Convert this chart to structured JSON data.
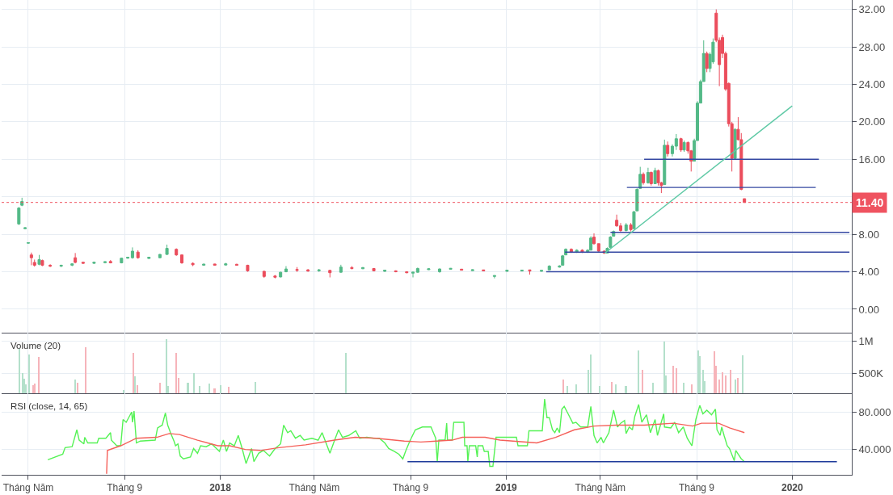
{
  "chart_data": [
    {
      "type": "candlestick",
      "x": [
        "2017-04-19",
        "2017-04-23",
        "2017-04-27",
        "2017-05-01",
        "2017-05-05",
        "2017-05-09",
        "2017-05-15",
        "2017-05-19",
        "2017-05-29",
        "2017-06-12",
        "2017-06-26",
        "2017-06-30",
        "2017-07-10",
        "2017-07-24",
        "2017-08-07",
        "2017-08-14",
        "2017-08-28",
        "2017-09-05",
        "2017-09-11",
        "2017-09-18",
        "2017-10-02",
        "2017-10-16",
        "2017-10-25",
        "2017-11-06",
        "2017-11-13",
        "2017-11-27",
        "2017-12-11",
        "2017-12-25",
        "2018-01-08",
        "2018-01-22",
        "2018-02-05",
        "2018-02-26",
        "2018-03-12",
        "2018-03-19",
        "2018-03-26",
        "2018-04-09",
        "2018-04-23",
        "2018-05-07",
        "2018-05-21",
        "2018-06-04",
        "2018-06-18",
        "2018-07-02",
        "2018-07-16",
        "2018-07-30",
        "2018-08-13",
        "2018-08-27",
        "2018-09-04",
        "2018-09-10",
        "2018-09-24",
        "2018-10-08",
        "2018-10-22",
        "2018-11-05",
        "2018-11-19",
        "2018-12-03",
        "2018-12-17",
        "2019-01-02",
        "2019-01-21",
        "2019-01-31",
        "2019-02-15",
        "2019-02-25",
        "2019-03-10",
        "2019-03-14",
        "2019-03-18",
        "2019-03-25",
        "2019-04-01",
        "2019-04-08",
        "2019-04-15",
        "2019-04-19",
        "2019-04-23",
        "2019-04-29",
        "2019-05-06",
        "2019-05-10",
        "2019-05-14",
        "2019-05-18",
        "2019-05-22",
        "2019-05-27",
        "2019-06-03",
        "2019-06-09",
        "2019-06-13",
        "2019-06-17",
        "2019-06-21",
        "2019-06-25",
        "2019-07-01",
        "2019-07-05",
        "2019-07-10",
        "2019-07-14",
        "2019-07-18",
        "2019-07-22",
        "2019-07-26",
        "2019-08-01",
        "2019-08-06",
        "2019-08-12",
        "2019-08-16",
        "2019-08-21",
        "2019-08-25",
        "2019-08-29",
        "2019-09-02",
        "2019-09-06",
        "2019-09-10",
        "2019-09-14",
        "2019-09-18",
        "2019-09-22",
        "2019-09-26",
        "2019-09-30",
        "2019-10-04",
        "2019-10-08",
        "2019-10-12",
        "2019-10-16",
        "2019-10-20",
        "2019-10-24",
        "2019-10-28",
        "2019-11-01"
      ],
      "ohlc": [
        [
          9.1,
          10.9,
          9.0,
          10.8
        ],
        [
          11.1,
          11.9,
          11.0,
          11.5
        ],
        [
          8.6,
          8.75,
          8.55,
          8.7
        ],
        [
          7.05,
          7.15,
          7.0,
          7.1
        ],
        [
          5.8,
          6.05,
          4.7,
          5.5
        ],
        [
          5.0,
          5.3,
          4.55,
          4.7
        ],
        [
          4.8,
          5.8,
          4.7,
          5.3
        ],
        [
          5.2,
          5.3,
          4.6,
          4.7
        ],
        [
          4.7,
          4.8,
          4.5,
          4.6
        ],
        [
          4.6,
          4.75,
          4.5,
          4.7
        ],
        [
          4.7,
          4.9,
          4.6,
          4.85
        ],
        [
          5.5,
          6.0,
          4.9,
          5.0
        ],
        [
          5.02,
          5.05,
          4.85,
          4.9
        ],
        [
          4.9,
          5.05,
          4.85,
          5.02
        ],
        [
          4.97,
          5.1,
          4.9,
          5.08
        ],
        [
          5.1,
          5.25,
          4.9,
          4.95
        ],
        [
          4.95,
          5.5,
          4.9,
          5.45
        ],
        [
          5.45,
          5.6,
          5.4,
          5.55
        ],
        [
          5.5,
          6.6,
          5.4,
          6.2
        ],
        [
          6.1,
          6.3,
          5.4,
          5.5
        ],
        [
          5.42,
          5.6,
          5.4,
          5.55
        ],
        [
          5.5,
          5.9,
          5.45,
          5.85
        ],
        [
          5.85,
          6.9,
          5.8,
          6.5
        ],
        [
          6.4,
          6.5,
          5.7,
          5.8
        ],
        [
          5.8,
          5.85,
          4.85,
          4.95
        ],
        [
          4.9,
          5.0,
          4.6,
          4.75
        ],
        [
          4.7,
          4.85,
          4.65,
          4.82
        ],
        [
          4.83,
          4.85,
          4.65,
          4.7
        ],
        [
          4.72,
          4.95,
          4.7,
          4.85
        ],
        [
          4.8,
          4.85,
          4.65,
          4.7
        ],
        [
          4.7,
          4.75,
          4.0,
          4.1
        ],
        [
          4.05,
          4.1,
          3.35,
          3.5
        ],
        [
          3.55,
          3.65,
          3.3,
          3.42
        ],
        [
          3.45,
          4.0,
          3.4,
          3.95
        ],
        [
          4.0,
          4.6,
          3.95,
          4.3
        ],
        [
          4.25,
          4.5,
          4.0,
          4.15
        ],
        [
          4.2,
          4.3,
          4.0,
          4.08
        ],
        [
          4.1,
          4.3,
          4.0,
          4.2
        ],
        [
          4.15,
          4.2,
          3.4,
          3.9
        ],
        [
          3.95,
          4.75,
          3.9,
          4.5
        ],
        [
          4.45,
          4.6,
          4.25,
          4.35
        ],
        [
          4.32,
          4.5,
          4.3,
          4.45
        ],
        [
          4.35,
          4.4,
          4.05,
          4.1
        ],
        [
          4.05,
          4.2,
          4.0,
          4.17
        ],
        [
          4.1,
          4.15,
          3.95,
          4.0
        ],
        [
          4.0,
          4.05,
          3.85,
          3.9
        ],
        [
          3.85,
          4.0,
          3.4,
          3.97
        ],
        [
          3.95,
          4.45,
          3.9,
          4.35
        ],
        [
          4.22,
          4.35,
          4.2,
          4.32
        ],
        [
          4.0,
          4.35,
          3.9,
          4.3
        ],
        [
          4.27,
          4.4,
          4.25,
          4.37
        ],
        [
          4.28,
          4.3,
          4.15,
          4.17
        ],
        [
          4.12,
          4.25,
          4.1,
          4.22
        ],
        [
          4.2,
          4.2,
          4.05,
          4.1
        ],
        [
          3.5,
          3.6,
          3.3,
          3.6
        ],
        [
          4.05,
          4.18,
          4.02,
          4.17
        ],
        [
          4.08,
          4.2,
          4.05,
          4.18
        ],
        [
          4.2,
          4.22,
          3.7,
          4.08
        ],
        [
          4.05,
          4.15,
          4.03,
          4.15
        ],
        [
          4.2,
          4.7,
          4.2,
          4.6
        ],
        [
          4.5,
          4.7,
          4.45,
          4.62
        ],
        [
          4.7,
          5.8,
          4.7,
          5.7
        ],
        [
          5.8,
          6.5,
          5.8,
          6.4
        ],
        [
          6.4,
          6.5,
          6.0,
          6.1
        ],
        [
          6.1,
          6.4,
          6.0,
          6.3
        ],
        [
          6.3,
          6.4,
          6.0,
          6.1
        ],
        [
          6.1,
          6.4,
          6.0,
          6.3
        ],
        [
          6.3,
          7.8,
          6.3,
          7.6
        ],
        [
          7.7,
          8.1,
          6.9,
          7.0
        ],
        [
          7.0,
          7.0,
          6.1,
          6.2
        ],
        [
          6.2,
          6.3,
          5.9,
          6.0
        ],
        [
          6.0,
          6.6,
          6.0,
          6.5
        ],
        [
          6.6,
          7.8,
          6.6,
          7.7
        ],
        [
          7.8,
          8.4,
          7.8,
          8.3
        ],
        [
          9.5,
          10.1,
          8.8,
          8.9
        ],
        [
          8.9,
          9.2,
          8.2,
          8.4
        ],
        [
          8.4,
          9.2,
          8.3,
          9.0
        ],
        [
          9.0,
          9.2,
          8.3,
          8.5
        ],
        [
          8.6,
          10.5,
          8.6,
          10.4
        ],
        [
          10.5,
          12.9,
          10.5,
          12.8
        ],
        [
          12.9,
          15.2,
          12.9,
          14.4
        ],
        [
          14.4,
          14.6,
          13.3,
          13.5
        ],
        [
          13.5,
          15.1,
          13.4,
          14.6
        ],
        [
          14.6,
          14.7,
          13.2,
          13.4
        ],
        [
          13.4,
          15.1,
          13.4,
          14.8
        ],
        [
          14.8,
          14.9,
          13.2,
          13.5
        ],
        [
          13.5,
          13.6,
          12.4,
          13.2
        ],
        [
          13.3,
          18.1,
          13.3,
          17.5
        ],
        [
          17.5,
          17.9,
          16.3,
          16.6
        ],
        [
          16.6,
          17.6,
          16.3,
          17.4
        ],
        [
          17.4,
          18.7,
          17.0,
          18.2
        ],
        [
          18.2,
          18.3,
          16.8,
          17.0
        ],
        [
          17.0,
          18.0,
          16.8,
          17.8
        ],
        [
          17.8,
          17.9,
          16.6,
          16.9
        ],
        [
          16.9,
          17.0,
          14.7,
          15.8
        ],
        [
          15.8,
          18.2,
          15.8,
          18.0
        ],
        [
          18.0,
          22.2,
          18.0,
          22.0
        ],
        [
          22.0,
          24.5,
          22.0,
          24.3
        ],
        [
          24.3,
          28.7,
          24.3,
          27.3
        ],
        [
          27.3,
          27.5,
          25.3,
          25.7
        ],
        [
          25.7,
          27.4,
          25.3,
          27.2
        ],
        [
          26.4,
          28.9,
          26.2,
          28.5
        ],
        [
          31.6,
          32.0,
          28.5,
          28.7
        ],
        [
          28.7,
          29.0,
          23.8,
          26.1
        ],
        [
          29.0,
          29.3,
          26.8,
          27.3
        ],
        [
          27.3,
          27.5,
          23.3,
          23.5
        ],
        [
          24.1,
          24.2,
          19.5,
          19.8
        ],
        [
          19.8,
          20.0,
          14.7,
          16.1
        ],
        [
          16.1,
          19.3,
          16.0,
          19.2
        ],
        [
          19.2,
          20.5,
          18.0,
          18.1
        ],
        [
          18.1,
          18.8,
          12.7,
          12.8
        ],
        [
          11.8,
          11.8,
          11.4,
          11.4
        ]
      ],
      "colors": [
        "#53b987",
        "#53b987",
        "#53b987",
        "#53b987",
        "#eb4d5c",
        "#eb4d5c",
        "#53b987",
        "#eb4d5c",
        "#eb4d5c",
        "#53b987",
        "#53b987",
        "#eb4d5c",
        "#eb4d5c",
        "#53b987",
        "#53b987",
        "#eb4d5c",
        "#53b987",
        "#53b987",
        "#53b987",
        "#eb4d5c",
        "#53b987",
        "#53b987",
        "#53b987",
        "#eb4d5c",
        "#eb4d5c",
        "#eb4d5c",
        "#53b987",
        "#eb4d5c",
        "#53b987",
        "#eb4d5c",
        "#eb4d5c",
        "#eb4d5c",
        "#eb4d5c",
        "#53b987",
        "#53b987",
        "#eb4d5c",
        "#eb4d5c",
        "#53b987",
        "#eb4d5c",
        "#53b987",
        "#eb4d5c",
        "#53b987",
        "#eb4d5c",
        "#53b987",
        "#eb4d5c",
        "#eb4d5c",
        "#53b987",
        "#53b987",
        "#53b987",
        "#53b987",
        "#53b987",
        "#eb4d5c",
        "#53b987",
        "#eb4d5c",
        "#53b987",
        "#53b987",
        "#53b987",
        "#eb4d5c",
        "#53b987",
        "#53b987",
        "#53b987",
        "#53b987",
        "#53b987",
        "#eb4d5c",
        "#53b987",
        "#eb4d5c",
        "#53b987",
        "#53b987",
        "#eb4d5c",
        "#eb4d5c",
        "#eb4d5c",
        "#53b987",
        "#53b987",
        "#53b987",
        "#eb4d5c",
        "#eb4d5c",
        "#53b987",
        "#eb4d5c",
        "#53b987",
        "#53b987",
        "#53b987",
        "#eb4d5c",
        "#53b987",
        "#eb4d5c",
        "#53b987",
        "#eb4d5c",
        "#eb4d5c",
        "#53b987",
        "#eb4d5c",
        "#53b987",
        "#53b987",
        "#eb4d5c",
        "#53b987",
        "#eb4d5c",
        "#eb4d5c",
        "#53b987",
        "#53b987",
        "#53b987",
        "#53b987",
        "#eb4d5c",
        "#53b987",
        "#53b987",
        "#eb4d5c",
        "#eb4d5c",
        "#eb4d5c",
        "#eb4d5c",
        "#eb4d5c",
        "#eb4d5c",
        "#53b987",
        "#eb4d5c",
        "#eb4d5c",
        "#eb4d5c"
      ],
      "series": [
        {
          "type": "line",
          "x": [
            "2019-06-26",
            "2020-02-04"
          ],
          "values": [
            16,
            16
          ],
          "color": "#3548a2"
        },
        {
          "type": "line",
          "x": [
            "2019-06-04",
            "2020-01-31"
          ],
          "values": [
            13,
            13
          ],
          "color": "#3548a2"
        },
        {
          "type": "line",
          "x": [
            "2019-05-14",
            "2020-03-14"
          ],
          "values": [
            8.2,
            8.2
          ],
          "color": "#3548a2"
        },
        {
          "type": "line",
          "x": [
            "2019-03-17",
            "2020-03-14"
          ],
          "values": [
            6.1,
            6.1
          ],
          "color": "#3548a2"
        },
        {
          "type": "line",
          "x": [
            "2019-02-21",
            "2020-03-14"
          ],
          "values": [
            4,
            4
          ],
          "color": "#3548a2"
        },
        {
          "type": "line",
          "x": [
            "2019-05-07",
            "2020-01-01"
          ],
          "values": [
            6,
            21.7
          ],
          "color": "#5ec9a5"
        }
      ],
      "ref_lines": [
        {
          "axis": "y",
          "value": 11.4,
          "label": "11.40",
          "color": "#ef5360",
          "line_style": "dotted"
        }
      ],
      "xlim": [
        "2017-03-28",
        "2020-03-17"
      ],
      "xticks": [
        {
          "value": "2017-05-01",
          "label": null
        },
        {
          "value": "2017-09-01",
          "label": null
        },
        {
          "value": "2018-01-01",
          "label": null
        },
        {
          "value": "2018-05-01",
          "label": null
        },
        {
          "value": "2018-09-01",
          "label": null
        },
        {
          "value": "2019-01-01",
          "label": null
        },
        {
          "value": "2019-05-01",
          "label": null
        },
        {
          "value": "2019-09-01",
          "label": null
        },
        {
          "value": "2020-01-01",
          "label": null
        }
      ],
      "ylim": [
        -2.5,
        33
      ],
      "yticks": [
        {
          "value": 0,
          "label": "0.00"
        },
        {
          "value": 4,
          "label": "4.00"
        },
        {
          "value": 8,
          "label": "8.00"
        },
        {
          "value": 12,
          "label": null
        },
        {
          "value": 16,
          "label": "16.00"
        },
        {
          "value": 20,
          "label": "20.00"
        },
        {
          "value": 24,
          "label": "24.00"
        },
        {
          "value": 28,
          "label": "28.00"
        },
        {
          "value": 32,
          "label": "32.00"
        }
      ],
      "tick_labels": "y",
      "grid": true
    },
    {
      "type": "bar",
      "title": "Volume (20)",
      "x": [
        "2017-04-20",
        "2017-04-24",
        "2017-04-26",
        "2017-04-28",
        "2017-05-02",
        "2017-05-08",
        "2017-05-10",
        "2017-05-15",
        "2017-06-30",
        "2017-07-03",
        "2017-07-14",
        "2017-08-31",
        "2017-09-12",
        "2017-09-14",
        "2017-09-18",
        "2017-10-16",
        "2017-10-25",
        "2017-10-27",
        "2017-11-06",
        "2017-11-09",
        "2017-11-21",
        "2017-11-29",
        "2017-12-06",
        "2017-12-18",
        "2017-12-25",
        "2018-01-02",
        "2018-01-12",
        "2018-02-15",
        "2018-06-11",
        "2019-03-15",
        "2019-03-20",
        "2019-04-01",
        "2019-04-16",
        "2019-04-19",
        "2019-04-30",
        "2019-05-16",
        "2019-05-21",
        "2019-06-03",
        "2019-06-19",
        "2019-06-24",
        "2019-07-08",
        "2019-07-22",
        "2019-07-24",
        "2019-08-02",
        "2019-08-06",
        "2019-08-16",
        "2019-08-26",
        "2019-09-03",
        "2019-09-05",
        "2019-09-09",
        "2019-09-12",
        "2019-09-24",
        "2019-09-26",
        "2019-09-30",
        "2019-10-04",
        "2019-10-08",
        "2019-10-15",
        "2019-10-21",
        "2019-10-24",
        "2019-10-30"
      ],
      "values": [
        880000,
        500000,
        420000,
        330000,
        800000,
        320000,
        340000,
        760000,
        410000,
        360000,
        910000,
        240000,
        820000,
        450000,
        320000,
        360000,
        1040000,
        300000,
        820000,
        430000,
        350000,
        500000,
        300000,
        340000,
        270000,
        320000,
        290000,
        370000,
        820000,
        410000,
        300000,
        330000,
        560000,
        800000,
        300000,
        370000,
        330000,
        300000,
        860000,
        560000,
        360000,
        1000000,
        470000,
        620000,
        580000,
        360000,
        330000,
        860000,
        770000,
        560000,
        380000,
        850000,
        620000,
        400000,
        520000,
        470000,
        550000,
        400000,
        430000,
        780000
      ],
      "colors": [
        "#b4e0cb",
        "#b4e0cb",
        "#b4e0cb",
        "#b4e0cb",
        "#b4e0cb",
        "#f6b4ba",
        "#f6b4ba",
        "#f6b4ba",
        "#b4e0cb",
        "#f6b4ba",
        "#f6b4ba",
        "#b4e0cb",
        "#f6b4ba",
        "#b4e0cb",
        "#f6b4ba",
        "#f6b4ba",
        "#b4e0cb",
        "#b4e0cb",
        "#f6b4ba",
        "#f6b4ba",
        "#b4e0cb",
        "#b4e0cb",
        "#b4e0cb",
        "#b4e0cb",
        "#f6b4ba",
        "#b4e0cb",
        "#f6b4ba",
        "#b4e0cb",
        "#b4e0cb",
        "#f6b4ba",
        "#b4e0cb",
        "#b4e0cb",
        "#b4e0cb",
        "#b4e0cb",
        "#b4e0cb",
        "#f6b4ba",
        "#b4e0cb",
        "#b4e0cb",
        "#b4e0cb",
        "#f6b4ba",
        "#b4e0cb",
        "#b4e0cb",
        "#b4e0cb",
        "#f6b4ba",
        "#f6b4ba",
        "#b4e0cb",
        "#f6b4ba",
        "#b4e0cb",
        "#b4e0cb",
        "#b4e0cb",
        "#b4e0cb",
        "#f6b4ba",
        "#f6b4ba",
        "#f6b4ba",
        "#f6b4ba",
        "#f6b4ba",
        "#f6b4ba",
        "#b4e0cb",
        "#f6b4ba",
        "#b4e0cb"
      ],
      "xlim": [
        "2017-03-28",
        "2020-03-17"
      ],
      "xticks": [
        {
          "value": "2017-05-01",
          "label": null
        },
        {
          "value": "2017-09-01",
          "label": null
        },
        {
          "value": "2018-01-01",
          "label": null
        },
        {
          "value": "2018-05-01",
          "label": null
        },
        {
          "value": "2018-09-01",
          "label": null
        },
        {
          "value": "2019-01-01",
          "label": null
        },
        {
          "value": "2019-05-01",
          "label": null
        },
        {
          "value": "2019-09-01",
          "label": null
        },
        {
          "value": "2020-01-01",
          "label": null
        }
      ],
      "ylim": [
        190000,
        1135000
      ],
      "yticks": [
        {
          "value": 500000,
          "label": "500K"
        },
        {
          "value": 1000000,
          "label": "1M"
        }
      ],
      "tick_labels": "y",
      "grid": true
    },
    {
      "type": "line",
      "title": "RSI (close, 14, 65)",
      "series": [
        {
          "x": [
            "2017-05-26",
            "2017-06-14",
            "2017-06-17",
            "2017-06-26",
            "2017-07-02",
            "2017-07-05",
            "2017-07-11",
            "2017-07-12",
            "2017-07-16",
            "2017-07-28",
            "2017-07-30",
            "2017-08-08",
            "2017-08-14",
            "2017-08-15",
            "2017-08-22",
            "2017-08-27",
            "2017-08-30",
            "2017-09-03",
            "2017-09-10",
            "2017-09-11",
            "2017-09-13",
            "2017-09-16",
            "2017-09-21",
            "2017-10-10",
            "2017-10-13",
            "2017-10-19",
            "2017-10-23",
            "2017-10-26",
            "2017-10-30",
            "2017-11-03",
            "2017-11-05",
            "2017-11-08",
            "2017-11-11",
            "2017-11-15",
            "2017-11-24",
            "2017-11-28",
            "2017-12-03",
            "2017-12-07",
            "2017-12-14",
            "2017-12-21",
            "2017-12-31",
            "2018-01-05",
            "2018-01-09",
            "2018-01-13",
            "2018-01-19",
            "2018-01-24",
            "2018-01-29",
            "2018-02-03",
            "2018-02-10",
            "2018-02-13",
            "2018-02-19",
            "2018-02-25",
            "2018-03-05",
            "2018-03-12",
            "2018-03-19",
            "2018-03-23",
            "2018-03-28",
            "2018-04-01",
            "2018-04-07",
            "2018-04-13",
            "2018-04-18",
            "2018-04-28",
            "2018-05-06",
            "2018-05-11",
            "2018-05-16",
            "2018-05-21",
            "2018-05-27",
            "2018-06-01",
            "2018-06-06",
            "2018-06-14",
            "2018-06-23",
            "2018-06-28",
            "2018-07-07",
            "2018-07-16",
            "2018-07-23",
            "2018-07-30",
            "2018-08-04",
            "2018-08-11",
            "2018-08-17",
            "2018-08-22",
            "2018-08-26",
            "2018-08-31",
            "2018-09-07",
            "2018-09-16",
            "2018-09-27",
            "2018-09-30",
            "2018-10-03",
            "2018-10-05",
            "2018-10-07",
            "2018-10-15",
            "2018-10-17",
            "2018-10-18",
            "2018-10-24",
            "2018-10-26",
            "2018-11-08",
            "2018-11-09",
            "2018-11-12",
            "2018-11-13",
            "2018-11-15",
            "2018-11-23",
            "2018-11-25",
            "2018-11-26",
            "2018-12-02",
            "2018-12-04",
            "2018-12-09",
            "2018-12-11",
            "2018-12-15",
            "2018-12-19",
            "2019-01-14",
            "2019-01-16",
            "2019-01-28",
            "2019-01-30",
            "2019-02-16",
            "2019-02-19",
            "2019-02-22",
            "2019-02-25",
            "2019-03-01",
            "2019-03-04",
            "2019-03-07",
            "2019-03-10",
            "2019-03-13",
            "2019-03-16",
            "2019-03-21",
            "2019-03-27",
            "2019-03-31",
            "2019-04-06",
            "2019-04-15",
            "2019-04-19",
            "2019-04-23",
            "2019-04-27",
            "2019-05-02",
            "2019-05-05",
            "2019-05-12",
            "2019-05-18",
            "2019-05-23",
            "2019-05-27",
            "2019-06-01",
            "2019-06-03",
            "2019-06-07",
            "2019-06-11",
            "2019-06-14",
            "2019-06-19",
            "2019-06-23",
            "2019-06-29",
            "2019-07-04",
            "2019-07-10",
            "2019-07-13",
            "2019-07-21",
            "2019-07-22",
            "2019-07-30",
            "2019-08-04",
            "2019-08-09",
            "2019-08-15",
            "2019-08-20",
            "2019-08-26",
            "2019-08-31",
            "2019-09-05",
            "2019-09-09",
            "2019-09-14",
            "2019-09-20",
            "2019-09-25",
            "2019-09-27",
            "2019-10-01",
            "2019-10-03",
            "2019-10-06",
            "2019-10-10",
            "2019-10-13",
            "2019-10-19",
            "2019-10-21",
            "2019-10-24",
            "2019-10-28",
            "2019-11-01"
          ],
          "values": [
            29,
            35,
            42,
            43,
            61,
            50,
            46,
            53,
            47,
            47,
            52,
            52,
            58,
            50,
            44,
            44,
            72,
            69,
            80,
            69,
            81,
            47,
            49,
            50,
            63,
            66,
            79,
            66,
            57,
            49,
            44,
            46,
            33,
            30,
            32,
            41,
            36,
            44,
            43,
            46,
            38,
            50,
            38,
            47,
            44,
            55,
            41,
            25,
            41,
            27,
            36,
            39,
            33,
            41,
            46,
            66,
            58,
            60,
            52,
            55,
            50,
            52,
            50,
            58,
            47,
            36,
            50,
            61,
            53,
            55,
            60,
            52,
            53,
            52,
            52,
            47,
            41,
            38,
            35,
            30,
            39,
            49,
            61,
            64,
            64,
            58,
            52,
            27,
            50,
            50,
            68,
            50,
            50,
            69,
            69,
            44,
            44,
            27,
            44,
            44,
            32,
            44,
            44,
            38,
            38,
            22,
            22,
            53,
            53,
            44,
            44,
            60,
            60,
            94,
            74,
            74,
            61,
            58,
            63,
            58,
            83,
            86,
            78,
            68,
            69,
            64,
            64,
            86,
            55,
            47,
            53,
            47,
            58,
            82,
            64,
            68,
            71,
            57,
            64,
            61,
            75,
            88,
            69,
            77,
            58,
            72,
            55,
            78,
            64,
            63,
            69,
            58,
            64,
            52,
            44,
            72,
            87,
            78,
            82,
            77,
            83,
            61,
            55,
            64,
            55,
            44,
            41,
            28,
            39,
            35,
            30,
            27
          ],
          "color": "#55f255"
        },
        {
          "x": [
            "2017-08-09",
            "2017-08-10",
            "2017-08-27",
            "2017-09-16",
            "2017-10-12",
            "2017-10-28",
            "2017-11-10",
            "2017-12-03",
            "2017-12-29",
            "2018-01-13",
            "2018-02-02",
            "2018-02-21",
            "2018-03-17",
            "2018-04-20",
            "2018-05-27",
            "2018-06-22",
            "2018-07-19",
            "2018-08-24",
            "2018-09-14",
            "2018-10-04",
            "2018-10-24",
            "2018-11-06",
            "2018-12-05",
            "2018-12-24",
            "2019-02-09",
            "2019-03-05",
            "2019-03-29",
            "2019-04-23",
            "2019-05-21",
            "2019-06-26",
            "2019-08-02",
            "2019-08-27",
            "2019-09-07",
            "2019-09-29",
            "2019-10-13",
            "2019-11-01"
          ],
          "values": [
            14,
            39,
            44,
            52,
            53,
            57,
            56,
            50,
            44,
            44,
            40,
            39,
            42,
            45,
            50,
            53,
            52,
            49,
            48,
            49,
            50,
            53,
            53,
            50,
            47,
            53,
            61,
            65,
            66,
            66,
            68,
            65,
            68,
            68,
            63,
            58
          ],
          "color": "#f5605a"
        },
        {
          "x": [
            "2018-08-28",
            "2020-02-27"
          ],
          "values": [
            27,
            27
          ],
          "color": "#1e3a9a"
        }
      ],
      "xlim": [
        "2017-03-28",
        "2020-03-17"
      ],
      "xticks": [
        {
          "value": "2017-05-01",
          "label": "Tháng Năm"
        },
        {
          "value": "2017-09-01",
          "label": "Tháng 9"
        },
        {
          "value": "2018-01-01",
          "label": "2018"
        },
        {
          "value": "2018-05-01",
          "label": "Tháng Năm"
        },
        {
          "value": "2018-09-01",
          "label": "Tháng 9"
        },
        {
          "value": "2019-01-01",
          "label": "2019"
        },
        {
          "value": "2019-05-01",
          "label": "Tháng Năm"
        },
        {
          "value": "2019-09-01",
          "label": "Tháng 9"
        },
        {
          "value": "2020-01-01",
          "label": "2020"
        }
      ],
      "ylim": [
        13,
        100
      ],
      "yticks": [
        {
          "value": 40,
          "label": "40.000"
        },
        {
          "value": 80,
          "label": "80.000"
        }
      ],
      "grid": true
    }
  ]
}
